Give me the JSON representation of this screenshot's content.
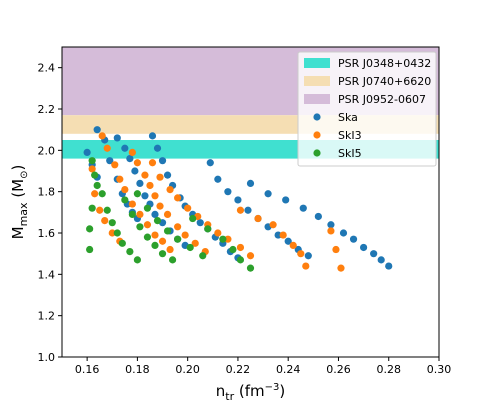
{
  "chart_data": {
    "type": "scatter",
    "xlabel": {
      "base": "n",
      "sub": "tr",
      "unit_open": " (fm",
      "unit_sup": "−3",
      "unit_close": ")"
    },
    "ylabel": {
      "base": "M",
      "sub": "max",
      "unit_open": " (M",
      "unit_sub": "⊙",
      "unit_close": ")"
    },
    "xlim": [
      0.15,
      0.3
    ],
    "ylim": [
      1.0,
      2.5
    ],
    "xticks": [
      0.16,
      0.18,
      0.2,
      0.22,
      0.24,
      0.26,
      0.28,
      0.3
    ],
    "xtick_labels": [
      "0.16",
      "0.18",
      "0.20",
      "0.22",
      "0.24",
      "0.26",
      "0.28",
      "0.30"
    ],
    "yticks": [
      1.0,
      1.2,
      1.4,
      1.6,
      1.8,
      2.0,
      2.2,
      2.4
    ],
    "ytick_labels": [
      "1.0",
      "1.2",
      "1.4",
      "1.6",
      "1.8",
      "2.0",
      "2.2",
      "2.4"
    ],
    "bands": [
      {
        "name": "PSR J0952-0607",
        "y0": 2.17,
        "y1": 2.5,
        "color": "#d5bcd9"
      },
      {
        "name": "PSR J0740+6620",
        "y0": 2.08,
        "y1": 2.17,
        "color": "#f5deb3"
      },
      {
        "name": "PSR J0348+0432",
        "y0": 1.96,
        "y1": 2.05,
        "color": "#40e0d0"
      }
    ],
    "legend": {
      "position": "top-right",
      "items": [
        {
          "label": "PSR J0348+0432",
          "kind": "patch",
          "color": "#40e0d0"
        },
        {
          "label": "PSR J0740+6620",
          "kind": "patch",
          "color": "#f5deb3"
        },
        {
          "label": "PSR J0952-0607",
          "kind": "patch",
          "color": "#d5bcd9"
        },
        {
          "label": "Ska",
          "kind": "marker",
          "color": "#1f77b4"
        },
        {
          "label": "SkI3",
          "kind": "marker",
          "color": "#ff7f0e"
        },
        {
          "label": "SkI5",
          "kind": "marker",
          "color": "#2ca02c"
        }
      ]
    },
    "series": [
      {
        "name": "Ska",
        "color": "#1f77b4",
        "points": [
          [
            0.16,
            1.99
          ],
          [
            0.162,
            1.93
          ],
          [
            0.164,
            1.87
          ],
          [
            0.164,
            2.1
          ],
          [
            0.167,
            2.05
          ],
          [
            0.169,
            1.95
          ],
          [
            0.172,
            1.86
          ],
          [
            0.174,
            1.79
          ],
          [
            0.176,
            1.74
          ],
          [
            0.178,
            1.7
          ],
          [
            0.18,
            1.67
          ],
          [
            0.172,
            2.06
          ],
          [
            0.175,
            2.01
          ],
          [
            0.177,
            1.96
          ],
          [
            0.179,
            1.9
          ],
          [
            0.181,
            1.84
          ],
          [
            0.183,
            1.78
          ],
          [
            0.185,
            1.74
          ],
          [
            0.187,
            1.69
          ],
          [
            0.19,
            1.65
          ],
          [
            0.193,
            1.61
          ],
          [
            0.196,
            1.57
          ],
          [
            0.199,
            1.54
          ],
          [
            0.186,
            2.07
          ],
          [
            0.188,
            2.01
          ],
          [
            0.19,
            1.95
          ],
          [
            0.192,
            1.88
          ],
          [
            0.194,
            1.83
          ],
          [
            0.197,
            1.77
          ],
          [
            0.199,
            1.73
          ],
          [
            0.202,
            1.69
          ],
          [
            0.205,
            1.65
          ],
          [
            0.208,
            1.62
          ],
          [
            0.211,
            1.58
          ],
          [
            0.214,
            1.55
          ],
          [
            0.217,
            1.51
          ],
          [
            0.22,
            1.48
          ],
          [
            0.209,
            1.94
          ],
          [
            0.212,
            1.86
          ],
          [
            0.216,
            1.8
          ],
          [
            0.22,
            1.76
          ],
          [
            0.224,
            1.71
          ],
          [
            0.228,
            1.67
          ],
          [
            0.232,
            1.63
          ],
          [
            0.236,
            1.59
          ],
          [
            0.24,
            1.56
          ],
          [
            0.244,
            1.52
          ],
          [
            0.248,
            1.49
          ],
          [
            0.225,
            1.84
          ],
          [
            0.232,
            1.79
          ],
          [
            0.239,
            1.76
          ],
          [
            0.246,
            1.72
          ],
          [
            0.252,
            1.68
          ],
          [
            0.257,
            1.64
          ],
          [
            0.262,
            1.6
          ],
          [
            0.266,
            1.57
          ],
          [
            0.27,
            1.53
          ],
          [
            0.274,
            1.5
          ],
          [
            0.277,
            1.47
          ],
          [
            0.28,
            1.44
          ]
        ]
      },
      {
        "name": "SkI3",
        "color": "#ff7f0e",
        "points": [
          [
            0.162,
            1.91
          ],
          [
            0.163,
            1.79
          ],
          [
            0.165,
            1.71
          ],
          [
            0.167,
            1.66
          ],
          [
            0.17,
            1.6
          ],
          [
            0.173,
            1.56
          ],
          [
            0.166,
            2.07
          ],
          [
            0.168,
            2.01
          ],
          [
            0.171,
            1.93
          ],
          [
            0.173,
            1.86
          ],
          [
            0.175,
            1.81
          ],
          [
            0.178,
            1.74
          ],
          [
            0.181,
            1.69
          ],
          [
            0.184,
            1.64
          ],
          [
            0.187,
            1.59
          ],
          [
            0.19,
            1.56
          ],
          [
            0.193,
            1.52
          ],
          [
            0.178,
            1.99
          ],
          [
            0.18,
            1.94
          ],
          [
            0.183,
            1.88
          ],
          [
            0.185,
            1.83
          ],
          [
            0.187,
            1.78
          ],
          [
            0.189,
            1.73
          ],
          [
            0.192,
            1.69
          ],
          [
            0.196,
            1.63
          ],
          [
            0.199,
            1.59
          ],
          [
            0.203,
            1.55
          ],
          [
            0.207,
            1.51
          ],
          [
            0.186,
            1.94
          ],
          [
            0.189,
            1.87
          ],
          [
            0.193,
            1.81
          ],
          [
            0.196,
            1.77
          ],
          [
            0.2,
            1.72
          ],
          [
            0.204,
            1.68
          ],
          [
            0.208,
            1.64
          ],
          [
            0.212,
            1.6
          ],
          [
            0.216,
            1.57
          ],
          [
            0.221,
            1.53
          ],
          [
            0.225,
            1.49
          ],
          [
            0.221,
            1.71
          ],
          [
            0.228,
            1.67
          ],
          [
            0.234,
            1.64
          ],
          [
            0.238,
            1.59
          ],
          [
            0.242,
            1.54
          ],
          [
            0.245,
            1.5
          ],
          [
            0.247,
            1.44
          ],
          [
            0.257,
            1.61
          ],
          [
            0.259,
            1.52
          ],
          [
            0.261,
            1.43
          ]
        ]
      },
      {
        "name": "SkI5",
        "color": "#2ca02c",
        "points": [
          [
            0.162,
            1.95
          ],
          [
            0.163,
            1.88
          ],
          [
            0.164,
            1.83
          ],
          [
            0.162,
            1.72
          ],
          [
            0.161,
            1.62
          ],
          [
            0.161,
            1.52
          ],
          [
            0.166,
            1.79
          ],
          [
            0.168,
            1.71
          ],
          [
            0.17,
            1.65
          ],
          [
            0.172,
            1.6
          ],
          [
            0.174,
            1.55
          ],
          [
            0.177,
            1.51
          ],
          [
            0.18,
            1.47
          ],
          [
            0.175,
            1.76
          ],
          [
            0.178,
            1.69
          ],
          [
            0.181,
            1.63
          ],
          [
            0.184,
            1.58
          ],
          [
            0.187,
            1.54
          ],
          [
            0.19,
            1.5
          ],
          [
            0.194,
            1.47
          ],
          [
            0.18,
            1.79
          ],
          [
            0.184,
            1.72
          ],
          [
            0.188,
            1.66
          ],
          [
            0.192,
            1.61
          ],
          [
            0.196,
            1.57
          ],
          [
            0.201,
            1.53
          ],
          [
            0.206,
            1.49
          ],
          [
            0.202,
            1.67
          ],
          [
            0.208,
            1.62
          ],
          [
            0.214,
            1.57
          ],
          [
            0.218,
            1.52
          ],
          [
            0.221,
            1.47
          ],
          [
            0.225,
            1.43
          ]
        ]
      }
    ]
  }
}
